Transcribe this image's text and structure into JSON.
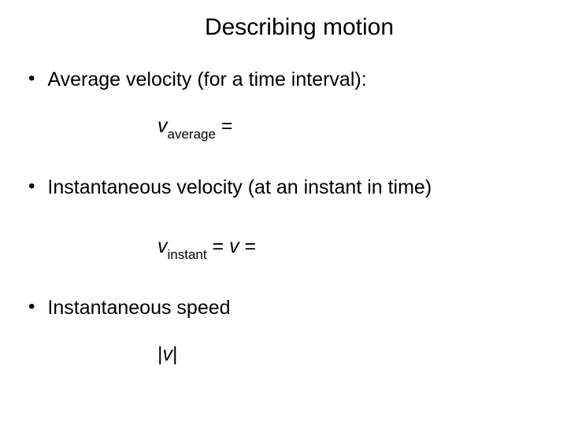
{
  "slide": {
    "title": "Describing motion",
    "title_fontsize": 30,
    "title_align": "center",
    "background_color": "#ffffff",
    "text_color": "#000000",
    "font_family": "Arial",
    "body_fontsize": 25,
    "subscript_fontsize": 17,
    "bullets": [
      {
        "text": "Average velocity (for a time interval):",
        "equation": {
          "var": "v",
          "sub": "average",
          "rhs": "="
        }
      },
      {
        "text": "Instantaneous velocity (at an instant in time)",
        "equation": {
          "var": "v",
          "sub": "instant",
          "mid": "= ",
          "var2": "v",
          "rhs": "   ="
        }
      },
      {
        "text": "Instantaneous speed",
        "equation": {
          "abs_open": "|",
          "var": "v",
          "abs_close": "|"
        }
      }
    ]
  }
}
